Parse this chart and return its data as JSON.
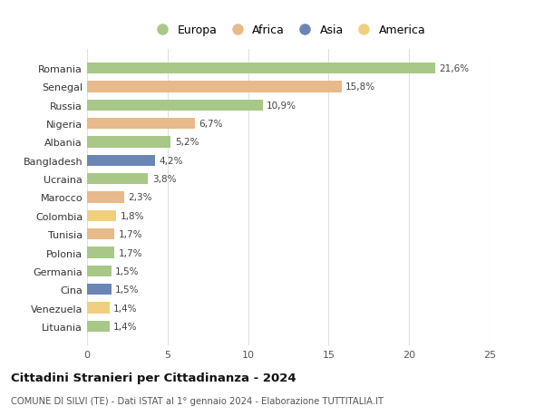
{
  "countries": [
    "Romania",
    "Senegal",
    "Russia",
    "Nigeria",
    "Albania",
    "Bangladesh",
    "Ucraina",
    "Marocco",
    "Colombia",
    "Tunisia",
    "Polonia",
    "Germania",
    "Cina",
    "Venezuela",
    "Lituania"
  ],
  "values": [
    21.6,
    15.8,
    10.9,
    6.7,
    5.2,
    4.2,
    3.8,
    2.3,
    1.8,
    1.7,
    1.7,
    1.5,
    1.5,
    1.4,
    1.4
  ],
  "labels": [
    "21,6%",
    "15,8%",
    "10,9%",
    "6,7%",
    "5,2%",
    "4,2%",
    "3,8%",
    "2,3%",
    "1,8%",
    "1,7%",
    "1,7%",
    "1,5%",
    "1,5%",
    "1,4%",
    "1,4%"
  ],
  "continents": [
    "Europa",
    "Africa",
    "Europa",
    "Africa",
    "Europa",
    "Asia",
    "Europa",
    "Africa",
    "America",
    "Africa",
    "Europa",
    "Europa",
    "Asia",
    "America",
    "Europa"
  ],
  "colors": {
    "Europa": "#a8c887",
    "Africa": "#e8b98a",
    "Asia": "#6b85b5",
    "America": "#f0d080"
  },
  "xlim": [
    0,
    25
  ],
  "xticks": [
    0,
    5,
    10,
    15,
    20,
    25
  ],
  "title": "Cittadini Stranieri per Cittadinanza - 2024",
  "subtitle": "COMUNE DI SILVI (TE) - Dati ISTAT al 1° gennaio 2024 - Elaborazione TUTTITALIA.IT",
  "bg_color": "#ffffff",
  "grid_color": "#e0e0e0",
  "legend_order": [
    "Europa",
    "Africa",
    "Asia",
    "America"
  ]
}
